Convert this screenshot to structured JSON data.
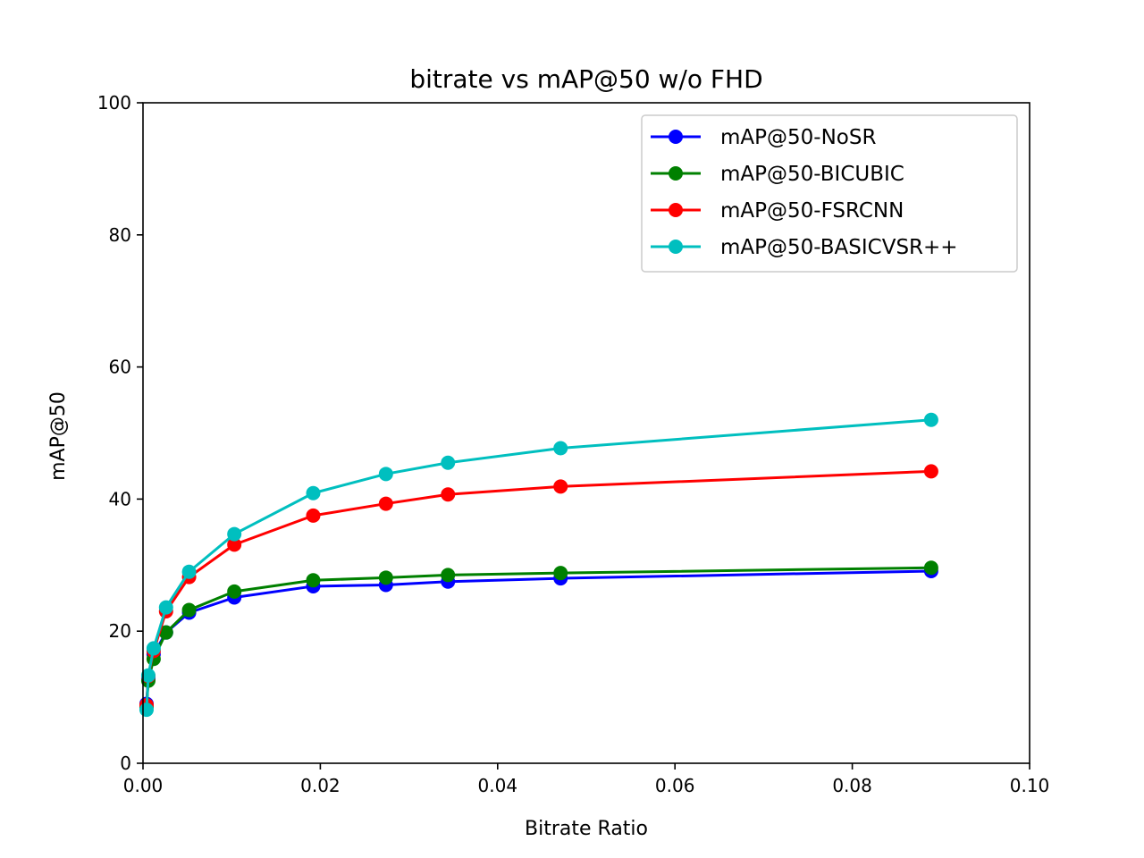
{
  "chart_data": {
    "type": "line",
    "title": "bitrate vs mAP@50 w/o FHD",
    "xlabel": "Bitrate Ratio",
    "ylabel": "mAP@50",
    "xlim": [
      0,
      0.1
    ],
    "ylim": [
      0,
      100
    ],
    "xticks": [
      "0.00",
      "0.02",
      "0.04",
      "0.06",
      "0.08",
      "0.10"
    ],
    "yticks": [
      "0",
      "20",
      "40",
      "60",
      "80",
      "100"
    ],
    "grid": false,
    "legend_position": "top-right",
    "x": [
      0.0004,
      0.0006,
      0.0012,
      0.0026,
      0.0052,
      0.0103,
      0.0192,
      0.0274,
      0.0344,
      0.0471,
      0.0889
    ],
    "series": [
      {
        "name": "mAP@50-NoSR",
        "color": "#0000ff",
        "values": [
          9.0,
          12.8,
          16.5,
          19.8,
          22.8,
          25.1,
          26.8,
          27.0,
          27.5,
          28.0,
          29.1
        ]
      },
      {
        "name": "mAP@50-BICUBIC",
        "color": "#008000",
        "values": [
          8.5,
          12.5,
          15.8,
          19.8,
          23.2,
          26.0,
          27.7,
          28.1,
          28.5,
          28.8,
          29.6
        ]
      },
      {
        "name": "mAP@50-FSRCNN",
        "color": "#ff0000",
        "values": [
          8.8,
          13.2,
          17.0,
          23.0,
          28.2,
          33.1,
          37.5,
          39.3,
          40.7,
          41.9,
          44.2
        ]
      },
      {
        "name": "mAP@50-BASICVSR++",
        "color": "#00bfbf",
        "values": [
          8.1,
          13.3,
          17.4,
          23.6,
          29.0,
          34.7,
          40.9,
          43.8,
          45.5,
          47.7,
          52.0
        ]
      }
    ]
  }
}
